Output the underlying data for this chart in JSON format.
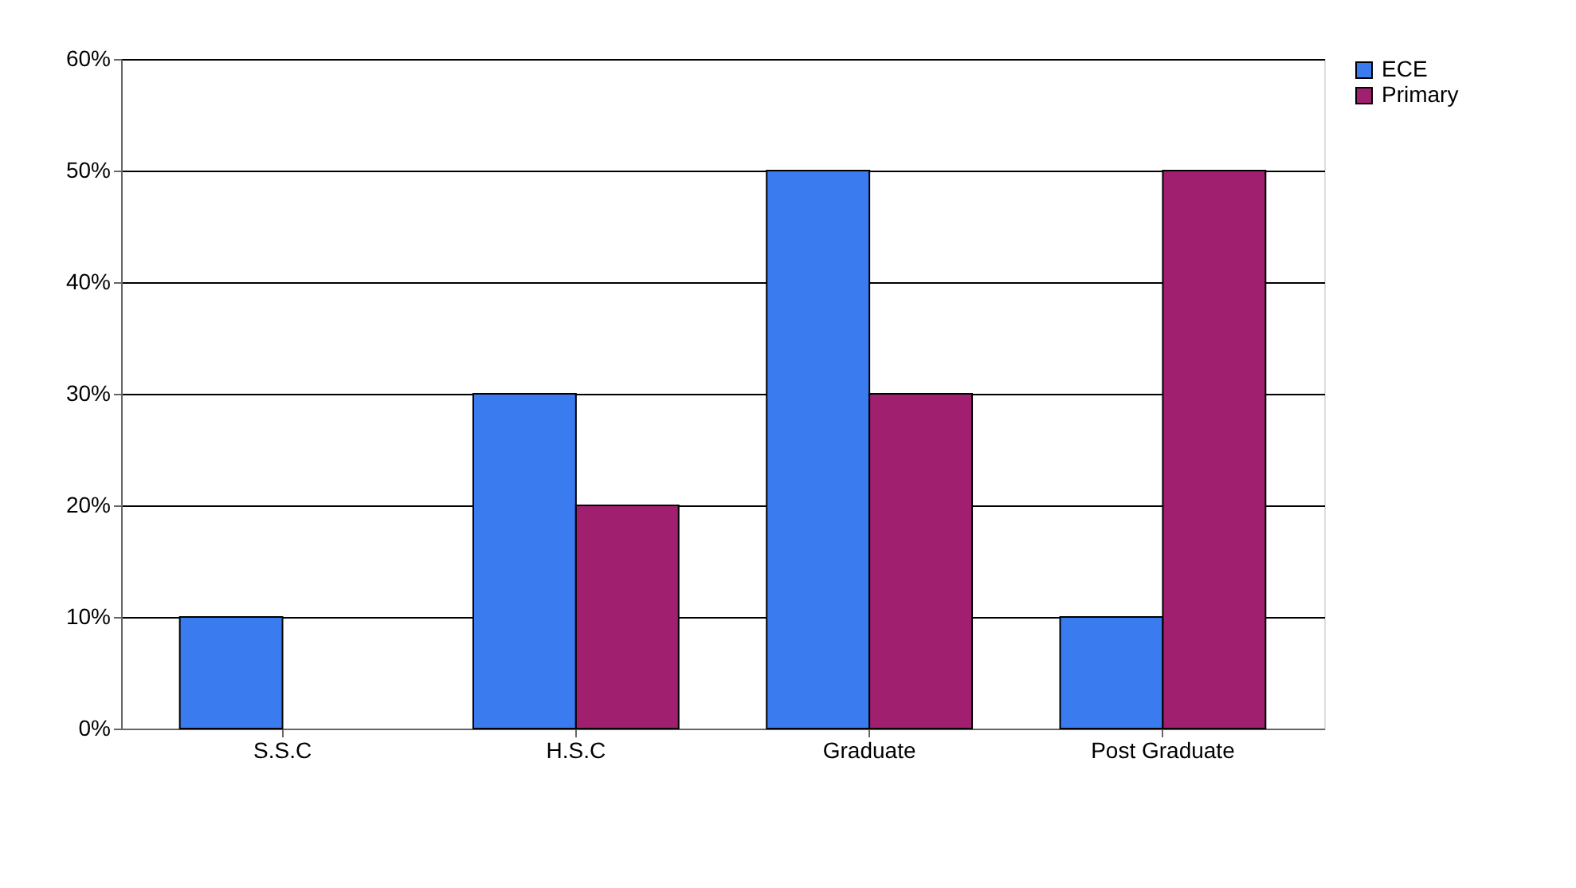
{
  "chart_data": {
    "type": "bar",
    "categories": [
      "S.S.C",
      "H.S.C",
      "Graduate",
      "Post Graduate"
    ],
    "series": [
      {
        "name": "ECE",
        "color": "#3a7bf0",
        "values": [
          10,
          30,
          50,
          10
        ]
      },
      {
        "name": "Primary",
        "color": "#a0206f",
        "values": [
          null,
          20,
          30,
          50
        ]
      }
    ],
    "ylim": [
      0,
      60
    ],
    "yticks": [
      {
        "value": 0,
        "label": "0%"
      },
      {
        "value": 10,
        "label": "10%"
      },
      {
        "value": 20,
        "label": "20%"
      },
      {
        "value": 30,
        "label": "30%"
      },
      {
        "value": 40,
        "label": "40%"
      },
      {
        "value": 50,
        "label": "50%"
      },
      {
        "value": 60,
        "label": "60%"
      }
    ],
    "grid": "y",
    "legend": "right"
  }
}
